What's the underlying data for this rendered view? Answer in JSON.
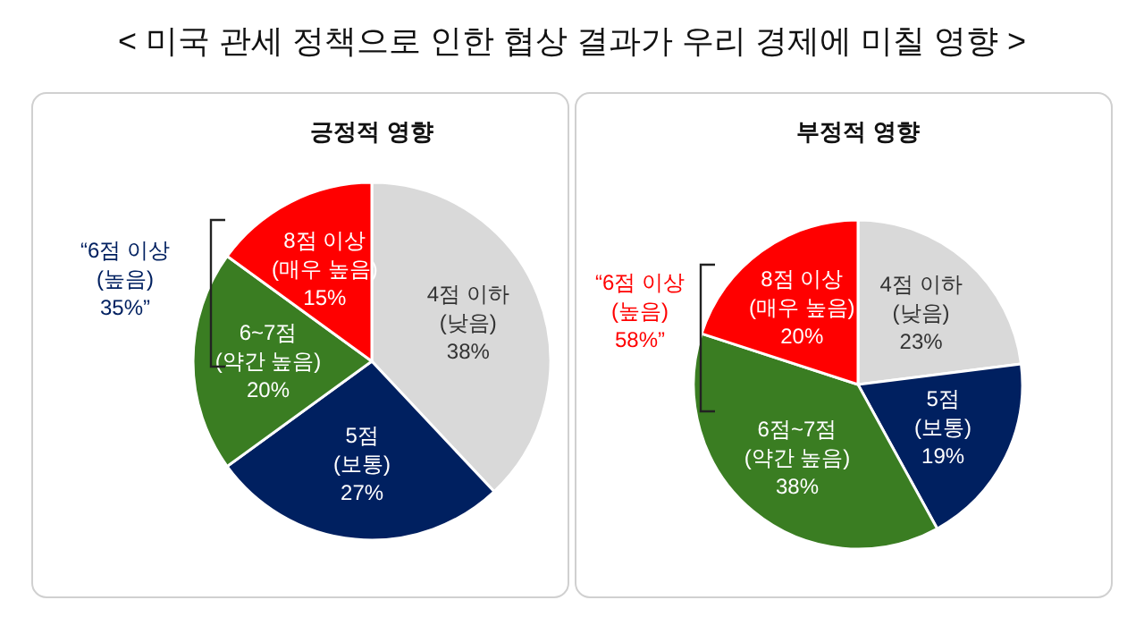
{
  "chart_data": [
    {
      "type": "other",
      "title": "< 미국 관세 정책으로 인한 협상 결과가 우리 경제에 미칠 영향 >"
    },
    {
      "type": "pie",
      "title": "긍정적 영향",
      "categories": [
        "4점 이하\n(낮음)",
        "5점\n(보통)",
        "6~7점\n(약간 높음)",
        "8점 이상\n(매우 높음)"
      ],
      "values": [
        38,
        27,
        20,
        15
      ],
      "value_labels": [
        "38%",
        "27%",
        "20%",
        "15%"
      ],
      "colors": [
        "#d9d9d9",
        "#002060",
        "#3a7d22",
        "#ff0000"
      ],
      "annotations": [
        "“6점 이상\n(높음)\n35%”"
      ]
    },
    {
      "type": "pie",
      "title": "부정적 영향",
      "categories": [
        "4점 이하\n(낮음)",
        "5점\n(보통)",
        "6점~7점\n(약간 높음)",
        "8점 이상\n(매우 높음)"
      ],
      "values": [
        23,
        19,
        38,
        20
      ],
      "value_labels": [
        "23%",
        "19%",
        "38%",
        "20%"
      ],
      "colors": [
        "#d9d9d9",
        "#002060",
        "#3a7d22",
        "#ff0000"
      ],
      "annotations": [
        "“6점 이상\n(높음)\n58%”"
      ]
    }
  ]
}
